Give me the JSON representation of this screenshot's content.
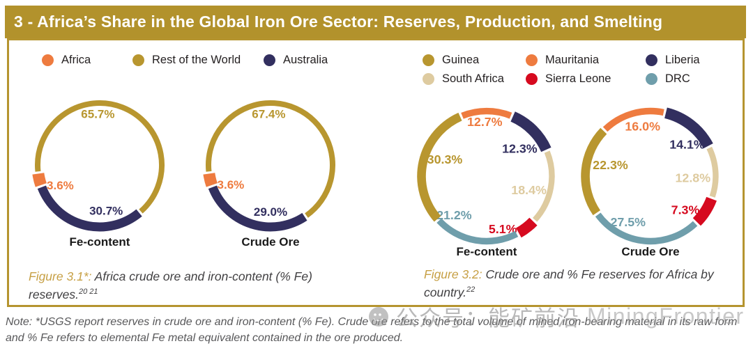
{
  "header": {
    "title": "3 - Africa’s Share in the Global Iron Ore Sector: Reserves, Production, and Smelting"
  },
  "colors": {
    "gold": "#B8962F",
    "orange": "#EE7B3F",
    "navy": "#322F5F",
    "beige": "#DECBA0",
    "red": "#D60A1F",
    "teal": "#6F9EAB",
    "bar_gold": "#B2922C",
    "caption_gold": "#C7A045"
  },
  "legends": {
    "global": [
      {
        "label": "Africa",
        "color": "orange"
      },
      {
        "label": "Rest of the World",
        "color": "gold"
      },
      {
        "label": "Australia",
        "color": "navy"
      }
    ],
    "country": [
      {
        "label": "Guinea",
        "color": "gold"
      },
      {
        "label": "Mauritania",
        "color": "orange"
      },
      {
        "label": "Liberia",
        "color": "navy"
      },
      {
        "label": "South Africa",
        "color": "beige"
      },
      {
        "label": "Sierra Leone",
        "color": "red"
      },
      {
        "label": "DRC",
        "color": "teal"
      }
    ]
  },
  "chart_data": [
    {
      "type": "pie",
      "style": "donut",
      "title": "Fe-content",
      "start_angle": 263,
      "legend": "Africa / Rest of the World / Australia",
      "segments": [
        {
          "label": "Rest of the World",
          "value": 65.7,
          "color": "gold",
          "width": 8,
          "label_angle": 358,
          "label_r": 0.8
        },
        {
          "label": "Australia",
          "value": 30.7,
          "color": "navy",
          "width": 13,
          "label_angle": 172,
          "label_r": 0.72
        },
        {
          "label": "Africa",
          "value": 3.6,
          "color": "orange",
          "width": 17,
          "label_angle": 243,
          "label_r": 0.69
        }
      ]
    },
    {
      "type": "pie",
      "style": "donut",
      "title": "Crude Ore",
      "start_angle": 263,
      "legend": "Africa / Rest of the World / Australia",
      "segments": [
        {
          "label": "Rest of the World",
          "value": 67.4,
          "color": "gold",
          "width": 8,
          "label_angle": 358,
          "label_r": 0.8
        },
        {
          "label": "Australia",
          "value": 29.0,
          "color": "navy",
          "width": 13,
          "label_angle": 180,
          "label_r": 0.73
        },
        {
          "label": "Africa",
          "value": 3.6,
          "color": "orange",
          "width": 17,
          "label_angle": 244,
          "label_r": 0.69
        }
      ]
    },
    {
      "type": "pie",
      "style": "donut",
      "title": "Fe-content",
      "start_angle": 337,
      "legend": "Guinea / Mauritania / Liberia / South Africa / Sierra Leone / DRC",
      "segments": [
        {
          "label": "Mauritania",
          "value": 12.7,
          "color": "orange",
          "width": 9,
          "label_angle": 358,
          "label_r": 0.81
        },
        {
          "label": "Liberia",
          "value": 12.3,
          "color": "navy",
          "width": 15,
          "label_angle": 50,
          "label_r": 0.64
        },
        {
          "label": "South Africa",
          "value": 18.4,
          "color": "beige",
          "width": 8,
          "label_angle": 108,
          "label_r": 0.66
        },
        {
          "label": "Sierra Leone",
          "value": 5.1,
          "color": "red",
          "width": 15,
          "label_angle": 163,
          "label_r": 0.82
        },
        {
          "label": "DRC",
          "value": 21.2,
          "color": "teal",
          "width": 9,
          "label_angle": 220,
          "label_r": 0.75
        },
        {
          "label": "Guinea",
          "value": 30.3,
          "color": "gold",
          "width": 12,
          "label_angle": 292,
          "label_r": 0.67
        }
      ]
    },
    {
      "type": "pie",
      "style": "donut",
      "title": "Crude Ore",
      "start_angle": 315,
      "legend": "Guinea / Mauritania / Liberia / South Africa / Sierra Leone / DRC",
      "segments": [
        {
          "label": "Mauritania",
          "value": 16.0,
          "color": "orange",
          "width": 9,
          "label_angle": 351,
          "label_r": 0.75
        },
        {
          "label": "Liberia",
          "value": 14.1,
          "color": "navy",
          "width": 15,
          "label_angle": 49,
          "label_r": 0.72
        },
        {
          "label": "South Africa",
          "value": 12.8,
          "color": "beige",
          "width": 8,
          "label_angle": 92,
          "label_r": 0.63
        },
        {
          "label": "Sierra Leone",
          "value": 7.3,
          "color": "red",
          "width": 15,
          "label_angle": 134,
          "label_r": 0.72
        },
        {
          "label": "DRC",
          "value": 27.5,
          "color": "teal",
          "width": 9,
          "label_angle": 206,
          "label_r": 0.76
        },
        {
          "label": "Guinea",
          "value": 22.3,
          "color": "gold",
          "width": 12,
          "label_angle": 286,
          "label_r": 0.62
        }
      ]
    }
  ],
  "captions": [
    {
      "prefix": "Figure 3.1*:",
      "body": " Africa crude ore and iron-content (% Fe) reserves.",
      "sup": "20 21"
    },
    {
      "prefix": "Figure 3.2:",
      "body": " Crude ore and % Fe reserves for Africa by country.",
      "sup": "22"
    }
  ],
  "note": "Note: *USGS report reserves in crude ore and iron-content (% Fe). Crude ore refers to the total volume of mined iron-bearing material in its raw form and % Fe refers to elemental Fe metal equivalent contained in the ore produced.",
  "watermark": {
    "cjk": "公众号：能矿前沿",
    "latin": "MiningFrontier"
  }
}
